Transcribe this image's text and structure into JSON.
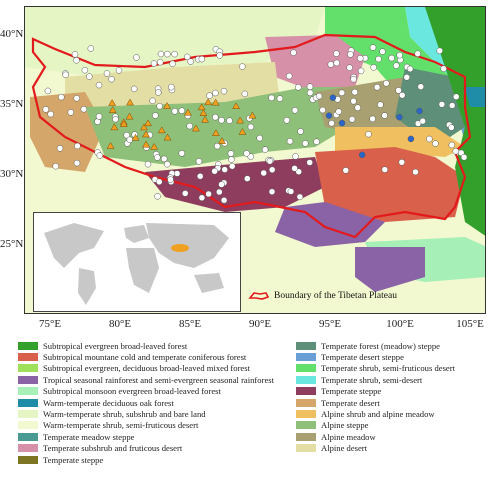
{
  "axes": {
    "y_ticks": [
      "40°N",
      "35°N",
      "30°N",
      "25°N"
    ],
    "x_ticks": [
      "75°E",
      "80°E",
      "85°E",
      "90°E",
      "95°E",
      "100°E",
      "105°E"
    ]
  },
  "boundary_label": "Boundary of the Tibetan Plateau",
  "boundary_color": "#e31a1c",
  "legend": {
    "left": [
      {
        "label": "Subtropical evergreen broad-leaved forest",
        "color": "#33a02c"
      },
      {
        "label": "Subtropical mountane cold and temperate coniferous forest",
        "color": "#d9604a"
      },
      {
        "label": "Subtropical evergreen, deciduous broad-leaved mixed forest",
        "color": "#9ee05a"
      },
      {
        "label": "Tropical seasonal rainforest and semi-evergreen seasonal rainforest",
        "color": "#8a63a6"
      },
      {
        "label": "Subtropical monsoon evergreen broad-leaved forest",
        "color": "#a6f0b8"
      },
      {
        "label": "Warm-temperate deciduous oak forest",
        "color": "#1f8ca8"
      },
      {
        "label": "Warm-temperate shrub, subshrub and bare land",
        "color": "#e6f5c4"
      },
      {
        "label": "Warm-temperate shrub, semi-fruticous desert",
        "color": "#f2f8cf"
      },
      {
        "label": "Temperate meadow steppe",
        "color": "#4a9a94"
      },
      {
        "label": "Temperate subshrub and fruticous desert",
        "color": "#d690a8"
      },
      {
        "label": "Temperate steppe",
        "color": "#7d7424"
      }
    ],
    "right": [
      {
        "label": "Temperate forest (meadow) steppe",
        "color": "#5e8f78"
      },
      {
        "label": "Temperate desert steppe",
        "color": "#6a9ed6"
      },
      {
        "label": "Temperate shrub, semi-fruticous desert",
        "color": "#63e06b"
      },
      {
        "label": "Temperate shrub,  semi-desert",
        "color": "#6ae8e0"
      },
      {
        "label": "Temperate steppe",
        "color": "#8e3d5e"
      },
      {
        "label": "Temperate desert",
        "color": "#d4a66a"
      },
      {
        "label": "Alpine shrub and alpine meadow",
        "color": "#f0c060"
      },
      {
        "label": "Alpine steppe",
        "color": "#8ec07a"
      },
      {
        "label": "Alpine meadow",
        "color": "#a8a070"
      },
      {
        "label": "Alpine desert",
        "color": "#e3dea4"
      }
    ]
  },
  "markers": {
    "circle_color": "#ffffff",
    "triangle_color": "#f0a020",
    "blue_color": "#2a66c8"
  }
}
